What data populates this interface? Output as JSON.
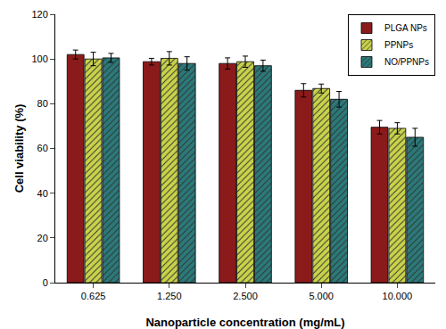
{
  "chart_data": {
    "type": "bar",
    "x_label": "Nanoparticle concentration (mg/mL)",
    "y_label": "Cell viability (%)",
    "categories": [
      "0.625",
      "1.250",
      "2.500",
      "5.000",
      "10.000"
    ],
    "series": [
      {
        "name": "PLGA NPs",
        "color": "#8b1a1a",
        "values": [
          102,
          98.8,
          98,
          86,
          69.5
        ],
        "errors": [
          2,
          1.5,
          2.5,
          3,
          3
        ]
      },
      {
        "name": "PPNPs",
        "color": "#c9d34a",
        "values": [
          100,
          100.3,
          98.8,
          86.8,
          69
        ],
        "errors": [
          3,
          3,
          2.5,
          2,
          2.5
        ]
      },
      {
        "name": "NO/PPNPs",
        "color": "#2b7a7a",
        "values": [
          100.5,
          98,
          97,
          82,
          65
        ],
        "errors": [
          2,
          3,
          2.5,
          3.5,
          4
        ]
      }
    ],
    "ylim": [
      0,
      120
    ],
    "yticks": [
      0,
      20,
      40,
      60,
      80,
      100,
      120
    ],
    "grid": false,
    "legend": "upper right"
  }
}
